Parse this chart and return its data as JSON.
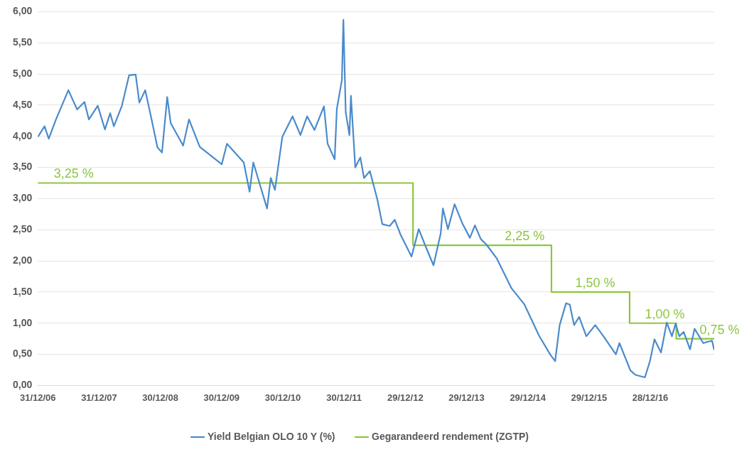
{
  "chart_data": {
    "type": "line",
    "xlim": [
      "2006-12-31",
      "2018-01-13"
    ],
    "ylim": [
      0,
      6
    ],
    "xticks": [
      {
        "value": "2006-12-31",
        "label": "31/12/06"
      },
      {
        "value": "2007-12-31",
        "label": "31/12/07"
      },
      {
        "value": "2008-12-30",
        "label": "30/12/08"
      },
      {
        "value": "2009-12-30",
        "label": "30/12/09"
      },
      {
        "value": "2010-12-30",
        "label": "30/12/10"
      },
      {
        "value": "2011-12-30",
        "label": "30/12/11"
      },
      {
        "value": "2012-12-29",
        "label": "29/12/12"
      },
      {
        "value": "2013-12-29",
        "label": "29/12/13"
      },
      {
        "value": "2014-12-29",
        "label": "29/12/14"
      },
      {
        "value": "2015-12-29",
        "label": "29/12/15"
      },
      {
        "value": "2016-12-28",
        "label": "28/12/16"
      }
    ],
    "yticks": [
      {
        "value": 0,
        "label": "0,00"
      },
      {
        "value": 0.5,
        "label": "0,50"
      },
      {
        "value": 1,
        "label": "1,00"
      },
      {
        "value": 1.5,
        "label": "1,50"
      },
      {
        "value": 2,
        "label": "2,00"
      },
      {
        "value": 2.5,
        "label": "2,50"
      },
      {
        "value": 3,
        "label": "3,00"
      },
      {
        "value": 3.5,
        "label": "3,50"
      },
      {
        "value": 4,
        "label": "4,00"
      },
      {
        "value": 4.5,
        "label": "4,50"
      },
      {
        "value": 5,
        "label": "5,00"
      },
      {
        "value": 5.5,
        "label": "5,50"
      },
      {
        "value": 6,
        "label": "6,00"
      }
    ],
    "grid": "y",
    "legend": "bottom",
    "marker": "none",
    "series": [
      {
        "name": "Yield Belgian OLO 10 Y (%)",
        "color": "#4a8bcb",
        "type": "line",
        "x": [
          "2006-12-31",
          "2007-02-09",
          "2007-03-06",
          "2007-04-18",
          "2007-07-01",
          "2007-08-22",
          "2007-10-05",
          "2007-10-31",
          "2007-12-23",
          "2008-02-04",
          "2008-03-06",
          "2008-03-28",
          "2008-05-15",
          "2008-06-27",
          "2008-08-05",
          "2008-08-27",
          "2008-10-01",
          "2008-11-04",
          "2008-12-13",
          "2009-01-09",
          "2009-02-09",
          "2009-03-02",
          "2009-05-15",
          "2009-06-19",
          "2009-08-22",
          "2009-12-31",
          "2010-01-31",
          "2010-05-11",
          "2010-06-15",
          "2010-07-07",
          "2010-09-27",
          "2010-10-19",
          "2010-11-13",
          "2010-12-27",
          "2011-02-26",
          "2011-04-14",
          "2011-05-24",
          "2011-07-07",
          "2011-09-01",
          "2011-09-23",
          "2011-11-04",
          "2011-11-17",
          "2011-12-17",
          "2011-12-26",
          "2012-01-09",
          "2012-01-31",
          "2012-02-09",
          "2012-03-06",
          "2012-04-05",
          "2012-04-27",
          "2012-06-01",
          "2012-07-15",
          "2012-08-14",
          "2012-09-27",
          "2012-10-27",
          "2012-12-01",
          "2013-02-04",
          "2013-03-19",
          "2013-05-01",
          "2013-06-15",
          "2013-07-28",
          "2013-08-10",
          "2013-09-09",
          "2013-10-19",
          "2013-12-06",
          "2014-01-18",
          "2014-02-17",
          "2014-03-24",
          "2014-04-27",
          "2014-06-27",
          "2014-09-23",
          "2014-12-09",
          "2015-03-06",
          "2015-05-11",
          "2015-06-10",
          "2015-07-07",
          "2015-08-14",
          "2015-09-05",
          "2015-10-01",
          "2015-10-31",
          "2015-12-13",
          "2016-02-04",
          "2016-03-24",
          "2016-06-06",
          "2016-06-27",
          "2016-09-01",
          "2016-10-01",
          "2016-11-26",
          "2016-12-26",
          "2017-01-22",
          "2017-03-02",
          "2017-04-05",
          "2017-05-06",
          "2017-05-28",
          "2017-06-19",
          "2017-07-15",
          "2017-08-22",
          "2017-09-18",
          "2017-11-09",
          "2017-12-31",
          "2018-01-13"
        ],
        "values": [
          3.99,
          4.16,
          3.96,
          4.27,
          4.74,
          4.43,
          4.55,
          4.27,
          4.49,
          4.11,
          4.37,
          4.16,
          4.49,
          4.98,
          4.99,
          4.54,
          4.74,
          4.32,
          3.82,
          3.74,
          4.63,
          4.21,
          3.85,
          4.27,
          3.83,
          3.55,
          3.88,
          3.58,
          3.11,
          3.58,
          2.84,
          3.33,
          3.14,
          3.99,
          4.32,
          4.02,
          4.32,
          4.1,
          4.48,
          3.88,
          3.63,
          4.44,
          4.9,
          5.87,
          4.38,
          4.02,
          4.65,
          3.5,
          3.66,
          3.33,
          3.44,
          2.99,
          2.59,
          2.56,
          2.66,
          2.42,
          2.07,
          2.51,
          2.22,
          1.93,
          2.44,
          2.84,
          2.51,
          2.91,
          2.59,
          2.37,
          2.57,
          2.35,
          2.26,
          2.04,
          1.56,
          1.3,
          0.8,
          0.5,
          0.39,
          0.97,
          1.32,
          1.3,
          0.97,
          1.1,
          0.79,
          0.97,
          0.79,
          0.5,
          0.68,
          0.24,
          0.17,
          0.13,
          0.39,
          0.74,
          0.53,
          1.01,
          0.79,
          0.99,
          0.79,
          0.86,
          0.58,
          0.91,
          0.68,
          0.72,
          0.57
        ]
      },
      {
        "name": "Gegarandeerd rendement (ZGTP)",
        "color": "#8dc63f",
        "type": "step",
        "x": [
          "2006-12-31",
          "2013-02-13",
          "2015-05-19",
          "2016-08-27",
          "2017-06-01",
          "2018-01-13"
        ],
        "values": [
          3.25,
          2.25,
          1.5,
          1,
          0.75,
          0.75
        ]
      }
    ],
    "annotations": [
      {
        "text": "3,25 %",
        "x": "2007-04-05",
        "y": 3.25
      },
      {
        "text": "2,25 %",
        "x": "2014-08-14",
        "y": 2.25
      },
      {
        "text": "1,50 %",
        "x": "2015-10-08",
        "y": 1.5
      },
      {
        "text": "1,00 %",
        "x": "2016-11-26",
        "y": 1
      },
      {
        "text": "0,75 %",
        "x": "2017-10-18",
        "y": 0.75
      }
    ]
  }
}
